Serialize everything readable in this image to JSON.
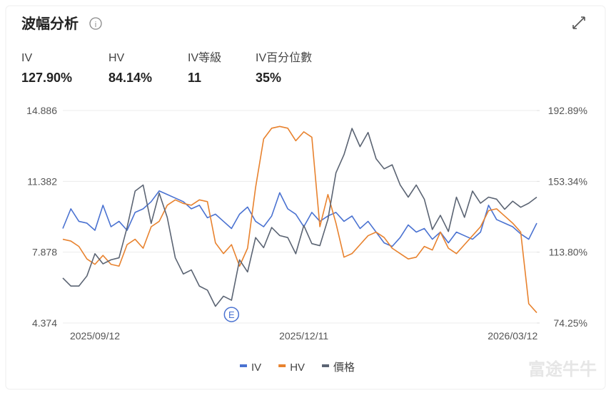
{
  "header": {
    "title": "波幅分析"
  },
  "metrics": [
    {
      "label": "IV",
      "value": "127.90%"
    },
    {
      "label": "HV",
      "value": "84.14%"
    },
    {
      "label": "IV等級",
      "value": "11"
    },
    {
      "label": "IV百分位數",
      "value": "35%"
    }
  ],
  "watermark": "富途牛牛",
  "chart_data": {
    "type": "line",
    "annotation": "E",
    "categories": [
      null,
      null,
      null,
      null,
      "2025/09/12",
      null,
      null,
      null,
      null,
      null,
      null,
      null,
      null,
      null,
      null,
      null,
      null,
      null,
      null,
      null,
      null,
      null,
      null,
      null,
      null,
      null,
      null,
      null,
      null,
      null,
      "2025/12/11",
      null,
      null,
      null,
      null,
      null,
      null,
      null,
      null,
      null,
      null,
      null,
      null,
      null,
      null,
      null,
      null,
      null,
      null,
      null,
      null,
      null,
      null,
      null,
      null,
      null,
      "2026/03/12",
      null,
      null,
      null
    ],
    "ylim": [
      4.374,
      14.886
    ],
    "yticks": [
      4.374,
      7.878,
      11.382,
      14.886
    ],
    "y2lim": [
      74.25,
      192.89
    ],
    "y2ticks": [
      {
        "value": 74.25,
        "label": "74.25%"
      },
      {
        "value": 113.8,
        "label": "113.80%"
      },
      {
        "value": 153.34,
        "label": "153.34%"
      },
      {
        "value": 192.89,
        "label": "192.89%"
      }
    ],
    "grid": true,
    "series": [
      {
        "name": "IV",
        "color": "#4a72d1",
        "axis": "y2",
        "values": [
          127,
          138,
          131,
          130,
          126,
          140,
          128,
          131,
          126,
          136,
          138,
          142,
          148,
          146,
          144,
          142,
          138,
          140,
          133,
          135,
          131,
          127,
          135,
          139,
          131,
          128,
          134,
          147,
          138,
          135,
          128,
          136,
          131,
          134,
          136,
          131,
          134,
          127,
          131,
          125,
          119,
          117,
          122,
          129,
          125,
          127,
          121,
          125,
          119,
          125,
          123,
          121,
          125,
          140,
          132,
          130,
          128,
          124,
          121,
          130
        ]
      },
      {
        "name": "HV",
        "color": "#e8822e",
        "axis": "y2",
        "values": [
          121,
          120,
          117,
          110,
          107,
          112,
          107,
          106,
          118,
          121,
          116,
          128,
          131,
          140,
          143,
          141,
          140,
          143,
          142,
          119,
          113,
          118,
          106,
          116,
          150,
          177,
          183,
          184,
          183,
          176,
          181,
          178,
          128,
          146,
          130,
          111,
          113,
          118,
          123,
          125,
          122,
          116,
          113,
          110,
          111,
          117,
          115,
          125,
          116,
          113,
          118,
          123,
          128,
          137,
          138,
          134,
          130,
          125,
          85,
          80
        ]
      },
      {
        "name": "價格",
        "color": "#5b6473",
        "values": [
          6.6,
          6.2,
          6.2,
          6.7,
          7.8,
          7.3,
          7.5,
          7.6,
          9.1,
          10.9,
          11.2,
          9.3,
          10.8,
          9.6,
          7.6,
          6.8,
          7.0,
          6.2,
          6.0,
          5.2,
          5.7,
          5.5,
          7.5,
          6.9,
          8.6,
          8.1,
          9.1,
          8.7,
          8.6,
          7.8,
          9.2,
          8.3,
          8.2,
          9.5,
          11.8,
          12.7,
          14.0,
          13.1,
          13.8,
          12.5,
          12.0,
          12.2,
          11.2,
          10.6,
          11.2,
          10.5,
          9.0,
          9.7,
          8.9,
          10.6,
          9.6,
          10.9,
          10.3,
          10.6,
          10.5,
          10.0,
          10.4,
          10.1,
          10.3,
          10.6
        ]
      }
    ]
  }
}
